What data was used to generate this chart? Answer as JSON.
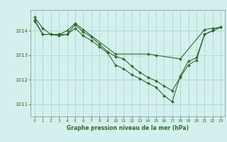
{
  "background_color": "#d4f0ee",
  "grid_color": "#a8d8cc",
  "line_color": "#2d6a2d",
  "marker_color": "#2d6a2d",
  "title": "Graphe pression niveau de la mer (hPa)",
  "xlim": [
    -0.5,
    23.5
  ],
  "ylim": [
    1010.5,
    1014.85
  ],
  "yticks": [
    1011,
    1012,
    1013,
    1014
  ],
  "xticks": [
    0,
    1,
    2,
    3,
    4,
    5,
    6,
    7,
    8,
    9,
    10,
    11,
    12,
    13,
    14,
    15,
    16,
    17,
    18,
    19,
    20,
    21,
    22,
    23
  ],
  "line1": [
    [
      0,
      1014.55
    ],
    [
      1,
      1014.1
    ],
    [
      2,
      1013.85
    ],
    [
      3,
      1013.85
    ],
    [
      4,
      1014.0
    ],
    [
      5,
      1014.3
    ],
    [
      6,
      1014.05
    ],
    [
      10,
      1013.05
    ],
    [
      14,
      1013.05
    ],
    [
      15,
      1013.0
    ],
    [
      18,
      1012.85
    ],
    [
      21,
      1014.05
    ],
    [
      22,
      1014.1
    ],
    [
      23,
      1014.15
    ]
  ],
  "line2": [
    [
      0,
      1014.45
    ],
    [
      1,
      1013.85
    ],
    [
      2,
      1013.85
    ],
    [
      3,
      1013.85
    ],
    [
      4,
      1013.85
    ],
    [
      5,
      1014.1
    ],
    [
      6,
      1013.8
    ],
    [
      7,
      1013.6
    ],
    [
      8,
      1013.35
    ],
    [
      9,
      1013.1
    ],
    [
      10,
      1012.6
    ],
    [
      11,
      1012.45
    ],
    [
      12,
      1012.2
    ],
    [
      13,
      1012.05
    ],
    [
      14,
      1011.85
    ],
    [
      15,
      1011.7
    ],
    [
      16,
      1011.35
    ],
    [
      17,
      1011.1
    ],
    [
      18,
      1012.15
    ],
    [
      19,
      1012.75
    ],
    [
      20,
      1012.9
    ],
    [
      21,
      1013.85
    ],
    [
      22,
      1014.0
    ],
    [
      23,
      1014.15
    ]
  ],
  "line3": [
    [
      0,
      1014.4
    ],
    [
      1,
      1013.85
    ],
    [
      2,
      1013.85
    ],
    [
      3,
      1013.8
    ],
    [
      4,
      1013.85
    ],
    [
      5,
      1014.25
    ],
    [
      6,
      1013.95
    ],
    [
      7,
      1013.75
    ],
    [
      8,
      1013.45
    ],
    [
      9,
      1013.15
    ],
    [
      10,
      1012.95
    ],
    [
      11,
      1012.85
    ],
    [
      12,
      1012.55
    ],
    [
      13,
      1012.3
    ],
    [
      14,
      1012.1
    ],
    [
      15,
      1011.95
    ],
    [
      16,
      1011.75
    ],
    [
      17,
      1011.55
    ],
    [
      18,
      1012.1
    ],
    [
      19,
      1012.6
    ],
    [
      20,
      1012.8
    ],
    [
      21,
      1013.85
    ],
    [
      22,
      1014.0
    ],
    [
      23,
      1014.15
    ]
  ]
}
